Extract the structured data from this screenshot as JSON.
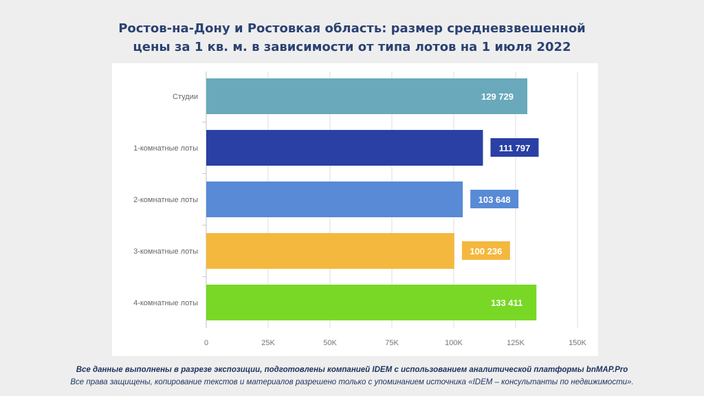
{
  "title": {
    "line1": "Ростов-на-Дону и Ростовкая область: размер средневзвешенной",
    "line2": "цены за 1 кв. м. в зависимости от типа лотов на 1 июля 2022"
  },
  "chart_data": {
    "type": "bar",
    "orientation": "horizontal",
    "categories": [
      "Студии",
      "1-комнатные лоты",
      "2-комнатные лоты",
      "3-комнатные лоты",
      "4-комнатные лоты"
    ],
    "values": [
      129729,
      111797,
      103648,
      100236,
      133411
    ],
    "value_labels": [
      "129 729",
      "111 797",
      "103 648",
      "100 236",
      "133 411"
    ],
    "colors": [
      "#69a9bb",
      "#2a40a4",
      "#588ad6",
      "#f4b83f",
      "#78d825"
    ],
    "xlim": [
      0,
      150000
    ],
    "xticks": [
      0,
      25000,
      50000,
      75000,
      100000,
      125000,
      150000
    ],
    "xtick_labels": [
      "0",
      "25K",
      "50K",
      "75K",
      "100K",
      "125K",
      "150K"
    ],
    "grid": true,
    "xlabel": "",
    "ylabel": ""
  },
  "footer": {
    "line1": "Все данные выполнены в разрезе экспозиции, подготовлены компанией IDEM с использованием аналитической платформы bnMAP.Pro",
    "line2": "Все права защищены, копирование текстов и материалов разрешено только с упоминанием источника «IDEM – консультанты по недвижимости»."
  }
}
